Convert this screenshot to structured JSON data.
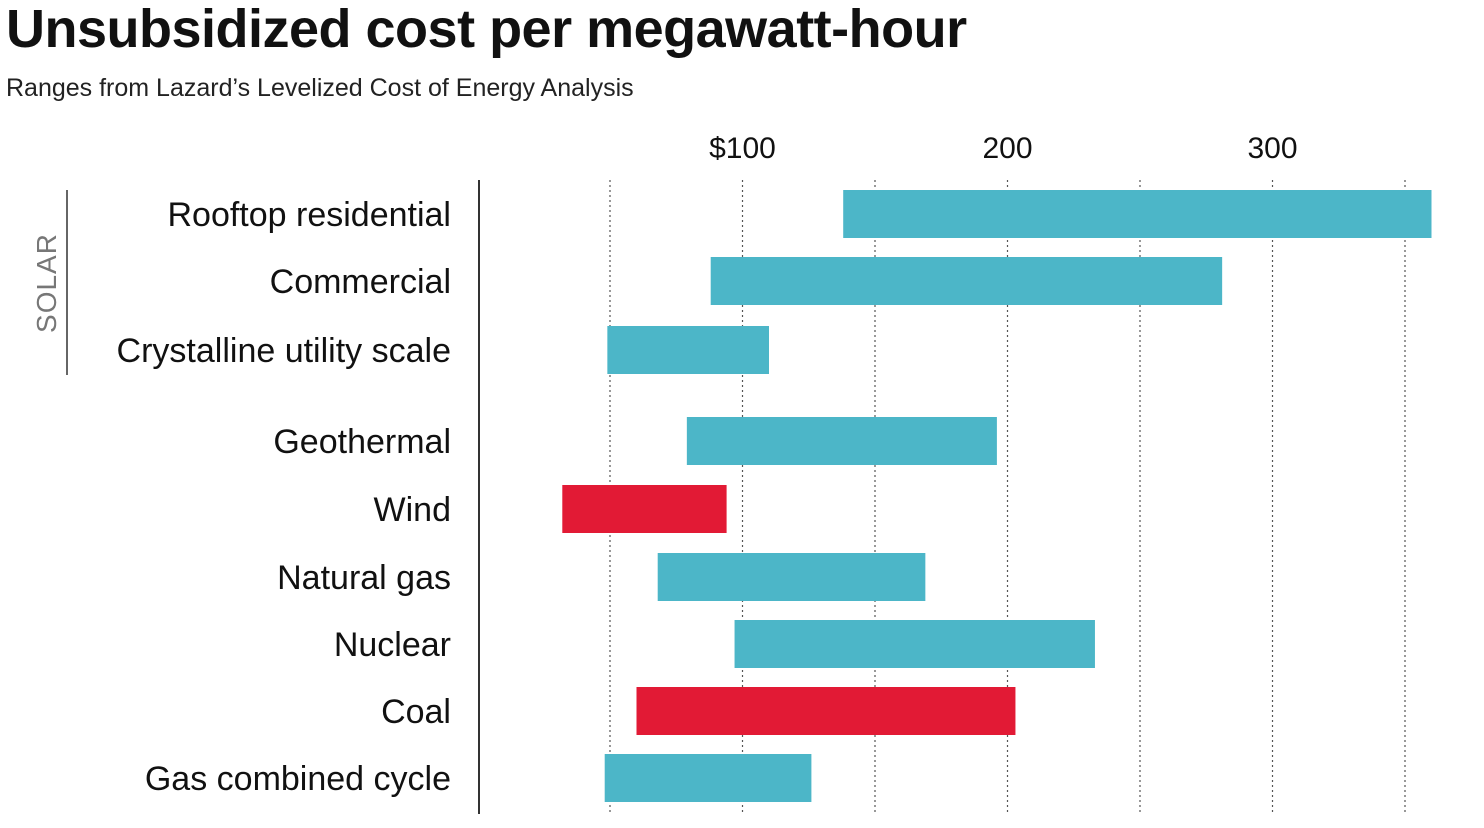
{
  "title": "Unsubsidized cost per megawatt-hour",
  "subtitle": "Ranges from Lazard’s Levelized Cost of Energy Analysis",
  "colors": {
    "bar_default": "#4cb6c8",
    "bar_highlight": "#e21a35",
    "grid": "#555555",
    "axis": "#333333"
  },
  "chart_data": {
    "type": "bar",
    "orientation": "horizontal",
    "range_bars": true,
    "xlim": [
      0,
      360
    ],
    "x_ticks": [
      50,
      100,
      150,
      200,
      250,
      300,
      350
    ],
    "x_tick_labels": [
      {
        "value": 100,
        "label": "$100"
      },
      {
        "value": 200,
        "label": "200"
      },
      {
        "value": 300,
        "label": "300"
      }
    ],
    "grid": "vertical-dotted",
    "groups": [
      {
        "label": "SOLAR",
        "categories": [
          "Rooftop residential",
          "Commercial",
          "Crystalline utility scale"
        ]
      }
    ],
    "categories": [
      "Rooftop residential",
      "Commercial",
      "Crystalline utility scale",
      "Geothermal",
      "Wind",
      "Natural gas",
      "Nuclear",
      "Coal",
      "Gas combined cycle"
    ],
    "ranges": [
      {
        "category": "Rooftop residential",
        "min": 138,
        "max": 360,
        "highlight": false
      },
      {
        "category": "Commercial",
        "min": 88,
        "max": 281,
        "highlight": false
      },
      {
        "category": "Crystalline utility scale",
        "min": 49,
        "max": 110,
        "highlight": false
      },
      {
        "category": "Geothermal",
        "min": 79,
        "max": 196,
        "highlight": false
      },
      {
        "category": "Wind",
        "min": 32,
        "max": 94,
        "highlight": true
      },
      {
        "category": "Natural gas",
        "min": 68,
        "max": 169,
        "highlight": false
      },
      {
        "category": "Nuclear",
        "min": 97,
        "max": 233,
        "highlight": false
      },
      {
        "category": "Coal",
        "min": 60,
        "max": 203,
        "highlight": true
      },
      {
        "category": "Gas combined cycle",
        "min": 48,
        "max": 126,
        "highlight": false
      }
    ]
  }
}
